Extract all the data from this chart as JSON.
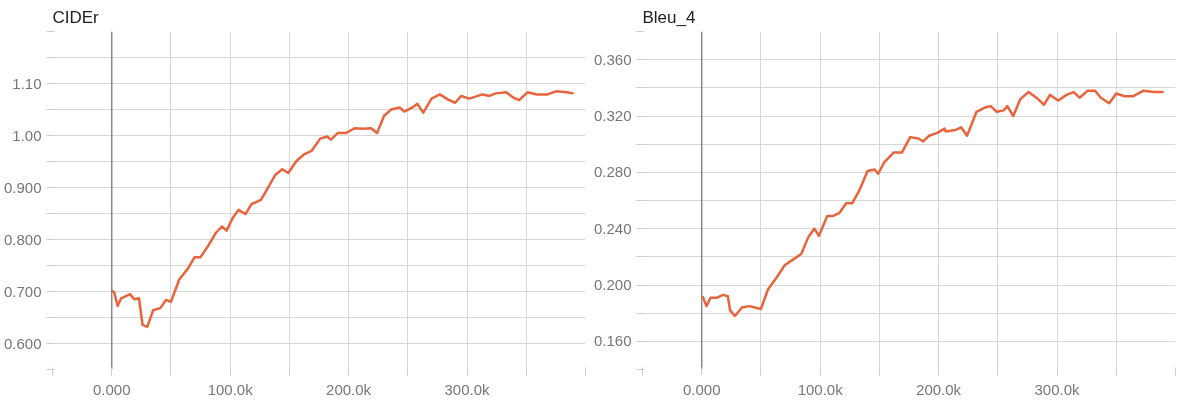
{
  "chart_data": [
    {
      "type": "line",
      "title": "CIDEr",
      "xlim": [
        -50000,
        400000
      ],
      "ylim": [
        0.55,
        1.2
      ],
      "xticks": [
        {
          "value": -50000,
          "label": null
        },
        {
          "value": 0,
          "label": "0.000"
        },
        {
          "value": 50000,
          "label": null
        },
        {
          "value": 100000,
          "label": "100.0k"
        },
        {
          "value": 150000,
          "label": null
        },
        {
          "value": 200000,
          "label": "200.0k"
        },
        {
          "value": 250000,
          "label": null
        },
        {
          "value": 300000,
          "label": "300.0k"
        },
        {
          "value": 350000,
          "label": null
        },
        {
          "value": 400000,
          "label": null
        }
      ],
      "yticks": [
        {
          "value": 0.55,
          "label": null
        },
        {
          "value": 0.6,
          "label": "0.600"
        },
        {
          "value": 0.65,
          "label": null
        },
        {
          "value": 0.7,
          "label": "0.700"
        },
        {
          "value": 0.75,
          "label": null
        },
        {
          "value": 0.8,
          "label": "0.800"
        },
        {
          "value": 0.85,
          "label": null
        },
        {
          "value": 0.9,
          "label": "0.900"
        },
        {
          "value": 0.95,
          "label": null
        },
        {
          "value": 1.0,
          "label": "1.00"
        },
        {
          "value": 1.05,
          "label": null
        },
        {
          "value": 1.1,
          "label": "1.10"
        },
        {
          "value": 1.15,
          "label": null
        },
        {
          "value": 1.2,
          "label": null
        }
      ],
      "grid": true,
      "line_style": "solid",
      "series": [
        {
          "color": "#e8643c",
          "x": [
            0,
            2000,
            5000,
            8000,
            15500,
            19000,
            23000,
            26000,
            30000,
            35000,
            41000,
            46000,
            50000,
            57000,
            64000,
            70000,
            75000,
            82000,
            88000,
            93000,
            97000,
            102000,
            107000,
            113000,
            118000,
            126000,
            131000,
            138000,
            144000,
            149000,
            156000,
            162000,
            169000,
            176000,
            182000,
            185000,
            191000,
            198000,
            205000,
            212000,
            219000,
            224000,
            230000,
            236000,
            243000,
            247000,
            254000,
            258000,
            263000,
            270000,
            277000,
            284000,
            290000,
            295000,
            302000,
            313000,
            319000,
            324000,
            333000,
            339000,
            344000,
            351000,
            359000,
            368000,
            375000,
            384000,
            390000
          ],
          "values": [
            0.701,
            0.699,
            0.672,
            0.687,
            0.695,
            0.685,
            0.687,
            0.636,
            0.632,
            0.664,
            0.668,
            0.684,
            0.68,
            0.723,
            0.743,
            0.766,
            0.766,
            0.79,
            0.813,
            0.825,
            0.817,
            0.841,
            0.857,
            0.849,
            0.868,
            0.876,
            0.896,
            0.924,
            0.935,
            0.928,
            0.951,
            0.963,
            0.971,
            0.994,
            0.998,
            0.992,
            1.005,
            1.005,
            1.014,
            1.013,
            1.014,
            1.005,
            1.038,
            1.05,
            1.054,
            1.046,
            1.054,
            1.061,
            1.044,
            1.071,
            1.079,
            1.069,
            1.063,
            1.076,
            1.071,
            1.079,
            1.076,
            1.081,
            1.083,
            1.073,
            1.068,
            1.083,
            1.079,
            1.079,
            1.085,
            1.083,
            1.081
          ]
        }
      ]
    },
    {
      "type": "line",
      "title": "Bleu_4",
      "xlim": [
        -50000,
        400000
      ],
      "ylim": [
        0.14,
        0.38
      ],
      "xticks": [
        {
          "value": -50000,
          "label": null
        },
        {
          "value": 0,
          "label": "0.000"
        },
        {
          "value": 50000,
          "label": null
        },
        {
          "value": 100000,
          "label": "100.0k"
        },
        {
          "value": 150000,
          "label": null
        },
        {
          "value": 200000,
          "label": "200.0k"
        },
        {
          "value": 250000,
          "label": null
        },
        {
          "value": 300000,
          "label": "300.0k"
        },
        {
          "value": 350000,
          "label": null
        },
        {
          "value": 400000,
          "label": null
        }
      ],
      "yticks": [
        {
          "value": 0.14,
          "label": null
        },
        {
          "value": 0.16,
          "label": "0.160"
        },
        {
          "value": 0.18,
          "label": null
        },
        {
          "value": 0.2,
          "label": "0.200"
        },
        {
          "value": 0.22,
          "label": null
        },
        {
          "value": 0.24,
          "label": "0.240"
        },
        {
          "value": 0.26,
          "label": null
        },
        {
          "value": 0.28,
          "label": "0.280"
        },
        {
          "value": 0.3,
          "label": null
        },
        {
          "value": 0.32,
          "label": "0.320"
        },
        {
          "value": 0.34,
          "label": null
        },
        {
          "value": 0.36,
          "label": "0.360"
        },
        {
          "value": 0.38,
          "label": null
        }
      ],
      "grid": true,
      "line_style": "solid",
      "series": [
        {
          "color": "#e8643c",
          "x": [
            700,
            4000,
            7500,
            13000,
            18000,
            22000,
            24000,
            28000,
            34000,
            40000,
            45000,
            50000,
            56000,
            63000,
            70000,
            77000,
            84000,
            90000,
            95000,
            99000,
            106000,
            111000,
            116000,
            122000,
            127000,
            133000,
            140000,
            146000,
            149000,
            154000,
            162000,
            169000,
            176000,
            183000,
            187000,
            192000,
            199000,
            205000,
            206000,
            214000,
            219000,
            224000,
            232000,
            239000,
            244000,
            249000,
            255000,
            258000,
            263000,
            269000,
            276000,
            284000,
            289000,
            294000,
            301000,
            308000,
            314000,
            319000,
            326000,
            332000,
            337000,
            344000,
            350000,
            357000,
            364000,
            373000,
            382000,
            390000
          ],
          "values": [
            0.192,
            0.185,
            0.191,
            0.191,
            0.193,
            0.192,
            0.182,
            0.178,
            0.184,
            0.185,
            0.184,
            0.183,
            0.197,
            0.205,
            0.214,
            0.218,
            0.222,
            0.234,
            0.24,
            0.235,
            0.249,
            0.249,
            0.251,
            0.258,
            0.258,
            0.267,
            0.281,
            0.282,
            0.279,
            0.287,
            0.294,
            0.294,
            0.305,
            0.304,
            0.302,
            0.306,
            0.308,
            0.311,
            0.309,
            0.31,
            0.312,
            0.306,
            0.323,
            0.326,
            0.327,
            0.323,
            0.324,
            0.327,
            0.32,
            0.332,
            0.337,
            0.332,
            0.328,
            0.335,
            0.331,
            0.335,
            0.337,
            0.333,
            0.338,
            0.338,
            0.333,
            0.329,
            0.336,
            0.334,
            0.334,
            0.338,
            0.337,
            0.337
          ]
        }
      ]
    }
  ]
}
